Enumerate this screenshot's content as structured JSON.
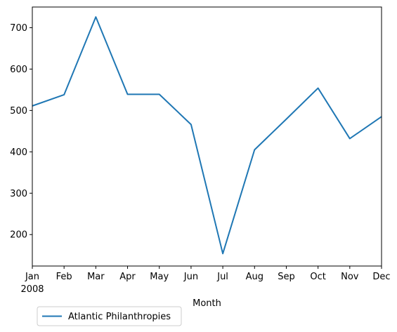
{
  "chart_data": {
    "type": "line",
    "title": "",
    "xlabel": "Month",
    "ylabel": "",
    "categories": [
      "Jan",
      "Feb",
      "Mar",
      "Apr",
      "May",
      "Jun",
      "Jul",
      "Aug",
      "Sep",
      "Oct",
      "Nov",
      "Dec"
    ],
    "x_year_label": "2008",
    "ylim": [
      124,
      750
    ],
    "yticks": [
      200,
      300,
      400,
      500,
      600,
      700
    ],
    "grid": false,
    "legend_position": "below-left",
    "series": [
      {
        "name": "Atlantic Philanthropies",
        "color": "#1f77b4",
        "values": [
          511,
          538,
          726,
          539,
          539,
          466,
          154,
          405,
          479,
          554,
          432,
          485
        ]
      }
    ]
  }
}
